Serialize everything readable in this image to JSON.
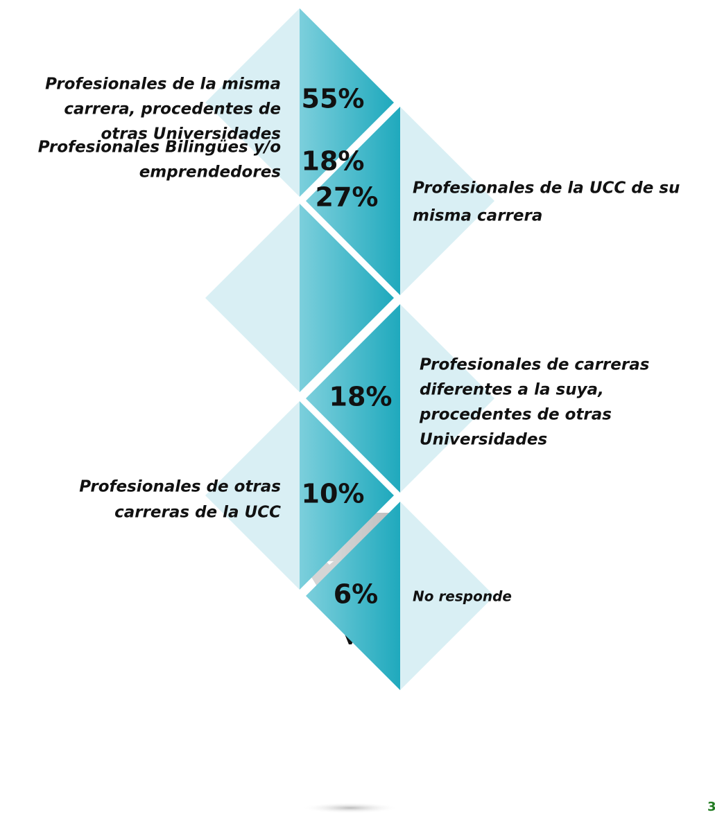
{
  "items": [
    {
      "percent": "55%",
      "label_lines": [
        "Profesionales de la misma",
        "carrera, procedentes de",
        "otras Universidades"
      ]
    },
    {
      "percent": "27%",
      "label_lines": [
        "Profesionales de la UCC de su",
        "misma carrera"
      ]
    },
    {
      "percent": "18%",
      "label_lines": [
        "Profesionales Bilingües y/o",
        "emprendedores"
      ]
    },
    {
      "percent": "18%",
      "label_lines": [
        "Profesionales de carreras",
        "diferentes a la suya,",
        "procedentes de otras",
        "Universidades"
      ]
    },
    {
      "percent": "10%",
      "label_lines": [
        "Profesionales de otras",
        "carreras de la UCC"
      ]
    },
    {
      "percent": "6%",
      "label_lines": [
        "No responde"
      ]
    }
  ],
  "page_number": "3"
}
